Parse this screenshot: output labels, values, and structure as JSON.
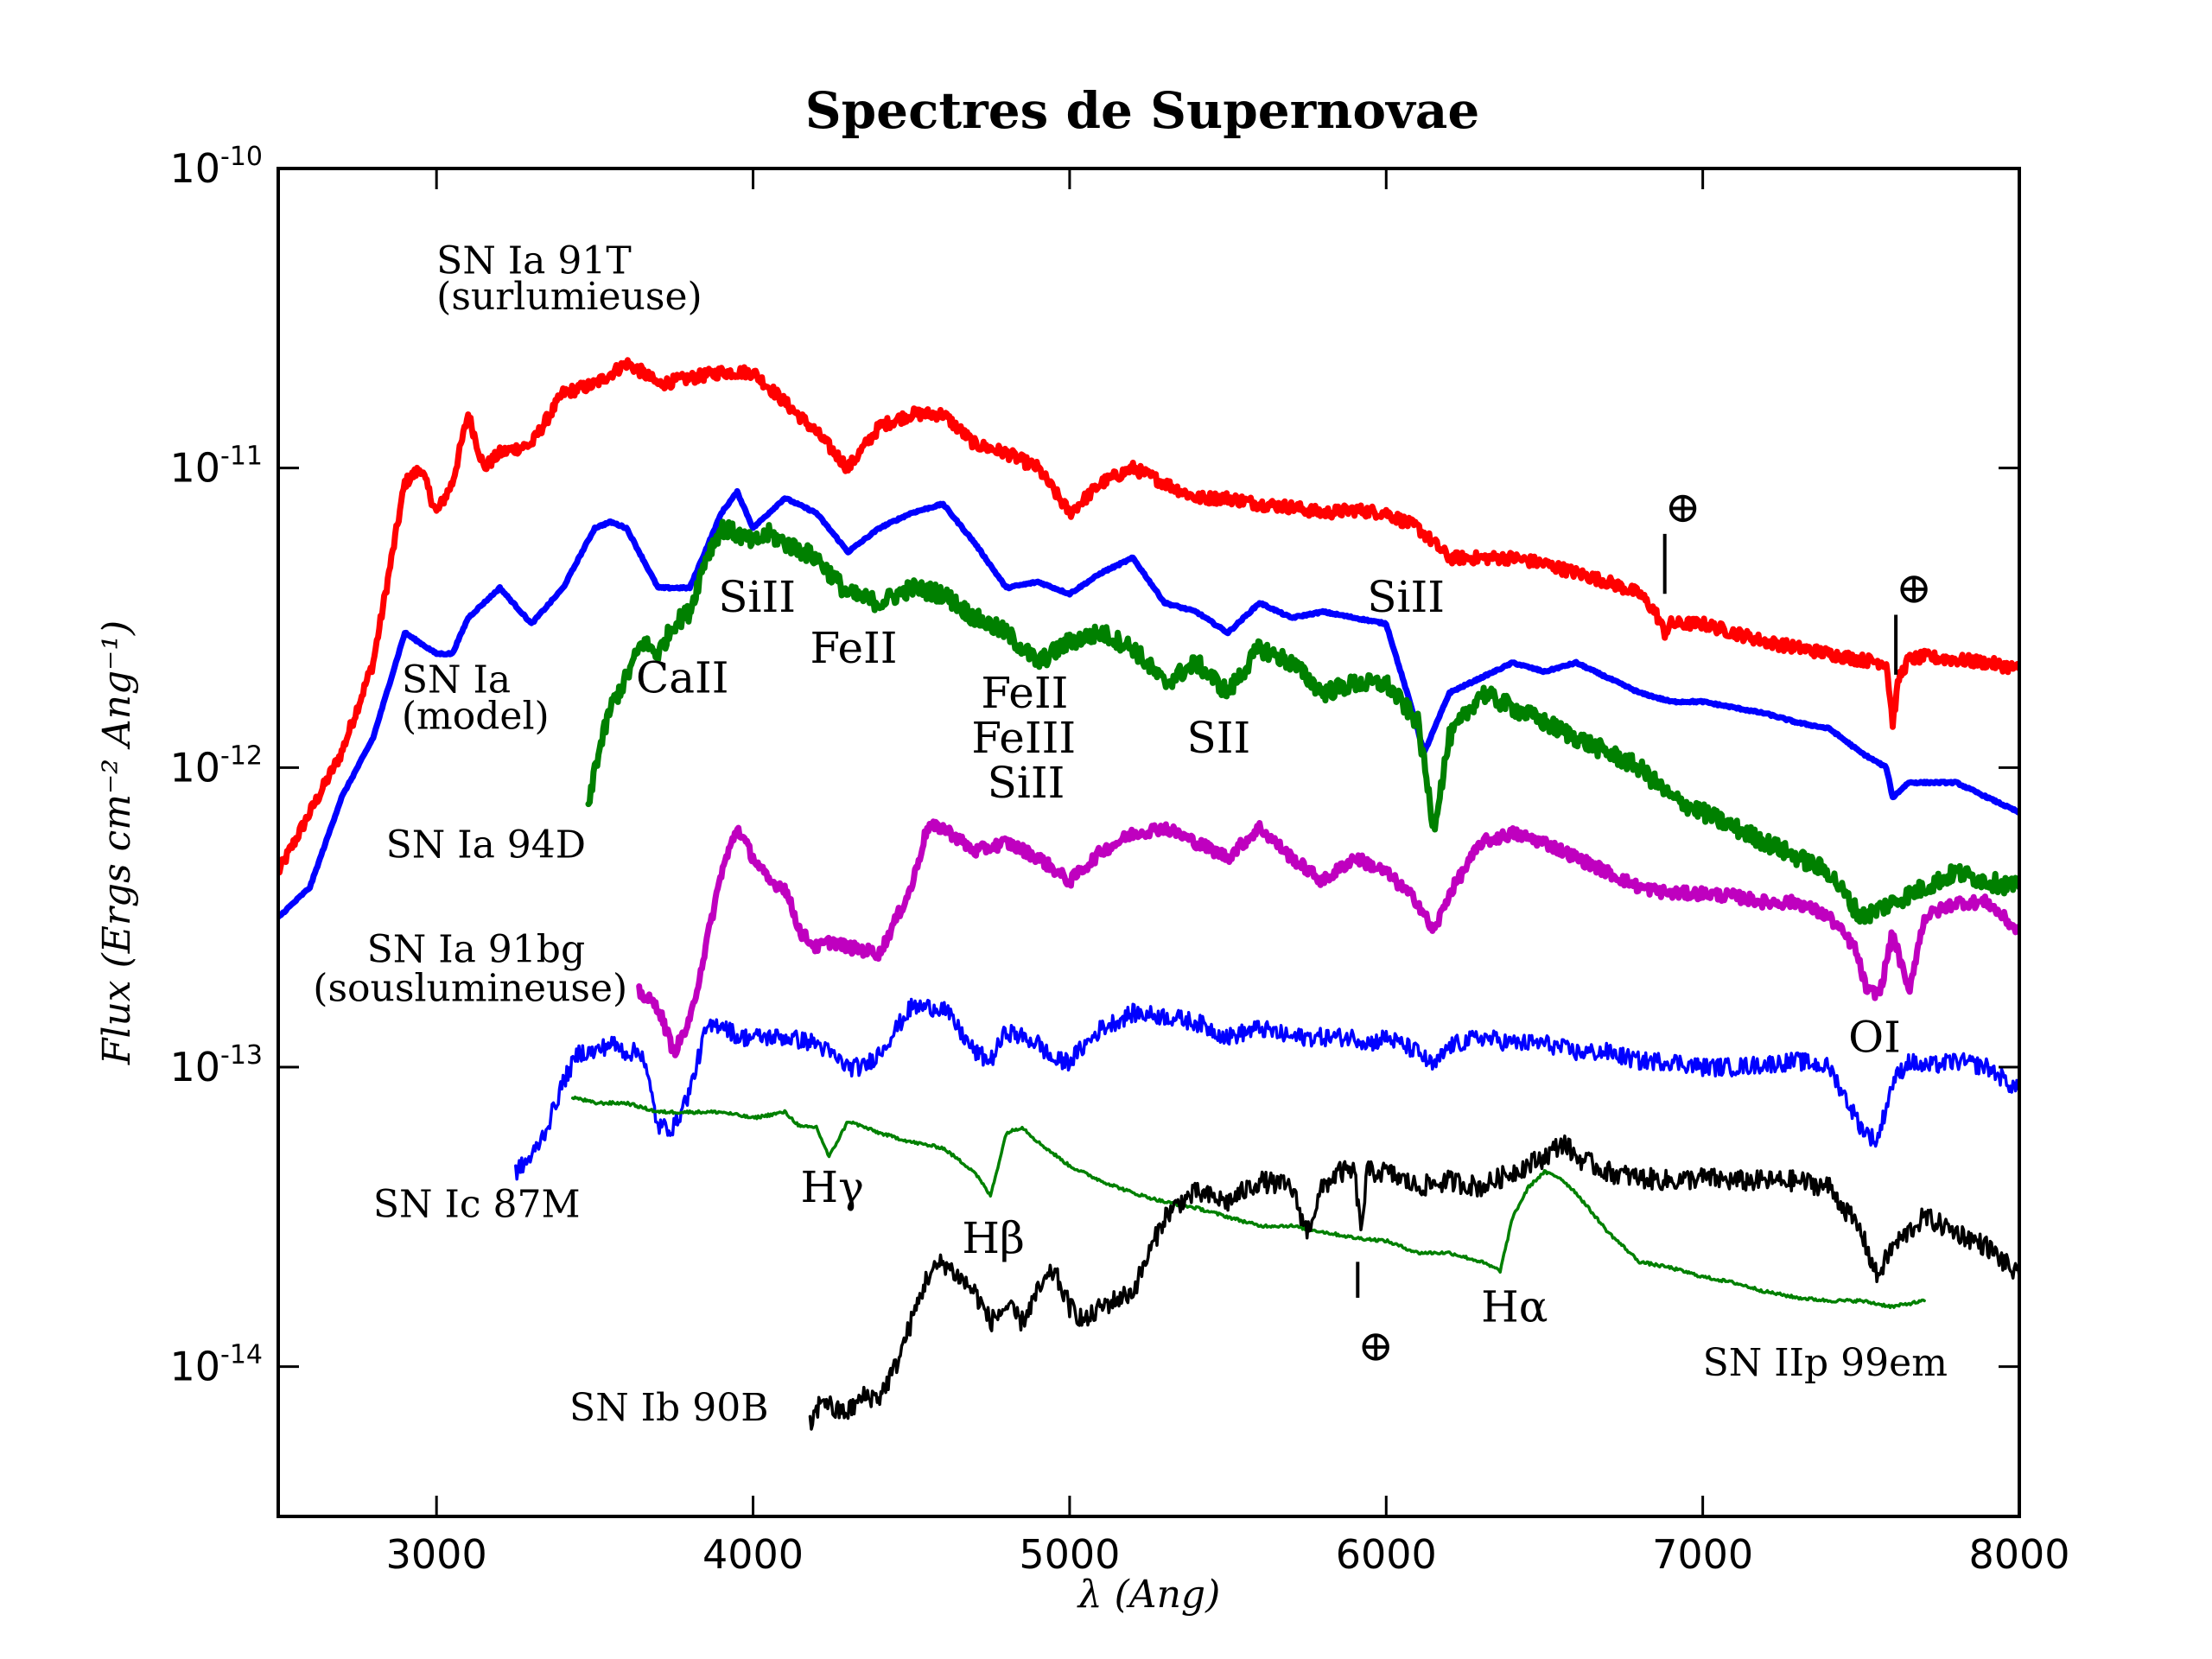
{
  "chart_data": {
    "type": "line",
    "title": "Spectres de Supernovae",
    "xlabel": "λ (Ang)",
    "ylabel": "Flux (Ergs cm⁻² Ang⁻¹)",
    "xlim": [
      2500,
      8000
    ],
    "ylim_log10": [
      -14.5,
      -10
    ],
    "yscale": "log",
    "x_ticks": [
      "3000",
      "4000",
      "5000",
      "6000",
      "7000",
      "8000"
    ],
    "y_ticks": [
      {
        "base": "10",
        "exp": "-10"
      },
      {
        "base": "10",
        "exp": "-11"
      },
      {
        "base": "10",
        "exp": "-12"
      },
      {
        "base": "10",
        "exp": "-13"
      },
      {
        "base": "10",
        "exp": "-14"
      }
    ],
    "series": [
      {
        "name": "SN Ia 91T (surlumieuse)",
        "color": "#ff0000",
        "width": "thick",
        "noise": 0.02,
        "x": [
          2500,
          2600,
          2700,
          2800,
          2850,
          2900,
          2950,
          3000,
          3050,
          3100,
          3150,
          3200,
          3300,
          3400,
          3500,
          3600,
          3650,
          3700,
          3800,
          3900,
          4000,
          4100,
          4200,
          4300,
          4400,
          4500,
          4600,
          4700,
          4800,
          4900,
          5000,
          5100,
          5200,
          5300,
          5400,
          5500,
          5600,
          5700,
          5800,
          5900,
          6000,
          6100,
          6200,
          6300,
          6400,
          6500,
          6600,
          6700,
          6800,
          6850,
          6880,
          6900,
          7000,
          7100,
          7200,
          7300,
          7400,
          7500,
          7580,
          7600,
          7620,
          7650,
          7700,
          7800,
          7900,
          8000
        ],
        "y": [
          -12.35,
          -12.15,
          -11.95,
          -11.65,
          -11.35,
          -11.05,
          -11.0,
          -11.15,
          -11.05,
          -10.82,
          -11.0,
          -10.95,
          -10.92,
          -10.75,
          -10.72,
          -10.65,
          -10.68,
          -10.72,
          -10.7,
          -10.68,
          -10.68,
          -10.78,
          -10.88,
          -11.0,
          -10.86,
          -10.82,
          -10.82,
          -10.92,
          -10.95,
          -11.0,
          -11.15,
          -11.05,
          -11.0,
          -11.05,
          -11.1,
          -11.1,
          -11.12,
          -11.13,
          -11.15,
          -11.14,
          -11.15,
          -11.2,
          -11.3,
          -11.3,
          -11.3,
          -11.32,
          -11.35,
          -11.38,
          -11.42,
          -11.48,
          -11.55,
          -11.52,
          -11.52,
          -11.55,
          -11.58,
          -11.6,
          -11.62,
          -11.64,
          -11.65,
          -11.85,
          -11.7,
          -11.64,
          -11.63,
          -11.64,
          -11.65,
          -11.67
        ]
      },
      {
        "name": "SN Ia (model)",
        "color": "#0000ff",
        "width": "thick",
        "noise": 0.003,
        "x": [
          2500,
          2600,
          2700,
          2800,
          2900,
          3000,
          3050,
          3100,
          3200,
          3300,
          3400,
          3500,
          3550,
          3600,
          3700,
          3800,
          3900,
          3950,
          4000,
          4100,
          4200,
          4300,
          4400,
          4500,
          4600,
          4700,
          4800,
          4900,
          5000,
          5100,
          5200,
          5300,
          5400,
          5500,
          5600,
          5700,
          5800,
          5900,
          6000,
          6080,
          6120,
          6200,
          6300,
          6400,
          6500,
          6600,
          6700,
          6800,
          6900,
          7000,
          7100,
          7200,
          7300,
          7400,
          7500,
          7580,
          7600,
          7650,
          7700,
          7800,
          7900,
          8000
        ],
        "y": [
          -12.5,
          -12.4,
          -12.1,
          -11.9,
          -11.55,
          -11.62,
          -11.62,
          -11.5,
          -11.4,
          -11.52,
          -11.4,
          -11.2,
          -11.18,
          -11.2,
          -11.4,
          -11.4,
          -11.15,
          -11.08,
          -11.2,
          -11.1,
          -11.15,
          -11.28,
          -11.2,
          -11.15,
          -11.12,
          -11.25,
          -11.4,
          -11.38,
          -11.42,
          -11.35,
          -11.3,
          -11.45,
          -11.48,
          -11.55,
          -11.45,
          -11.5,
          -11.48,
          -11.5,
          -11.52,
          -11.8,
          -11.95,
          -11.75,
          -11.7,
          -11.65,
          -11.68,
          -11.65,
          -11.7,
          -11.75,
          -11.78,
          -11.78,
          -11.8,
          -11.82,
          -11.85,
          -11.87,
          -11.95,
          -12.0,
          -12.1,
          -12.05,
          -12.05,
          -12.05,
          -12.1,
          -12.15
        ]
      },
      {
        "name": "SN Ia 94D",
        "color": "#008000",
        "width": "thick",
        "noise": 0.03,
        "x": [
          3480,
          3500,
          3550,
          3600,
          3650,
          3700,
          3750,
          3800,
          3850,
          3900,
          3950,
          4000,
          4050,
          4100,
          4200,
          4300,
          4400,
          4500,
          4600,
          4700,
          4800,
          4900,
          5000,
          5100,
          5200,
          5300,
          5400,
          5500,
          5600,
          5700,
          5800,
          5900,
          6000,
          6100,
          6150,
          6200,
          6300,
          6400,
          6500,
          6600,
          6700,
          6800,
          6900,
          7000,
          7100,
          7200,
          7300,
          7400,
          7500,
          7600,
          7700,
          7800,
          7900,
          8000
        ],
        "y": [
          -12.15,
          -12.0,
          -11.8,
          -11.7,
          -11.58,
          -11.62,
          -11.52,
          -11.48,
          -11.3,
          -11.2,
          -11.22,
          -11.25,
          -11.22,
          -11.25,
          -11.3,
          -11.42,
          -11.45,
          -11.4,
          -11.42,
          -11.5,
          -11.55,
          -11.65,
          -11.58,
          -11.55,
          -11.6,
          -11.72,
          -11.65,
          -11.75,
          -11.6,
          -11.65,
          -11.75,
          -11.72,
          -11.72,
          -11.85,
          -12.2,
          -11.9,
          -11.75,
          -11.8,
          -11.85,
          -11.9,
          -11.95,
          -12.0,
          -12.1,
          -12.15,
          -12.2,
          -12.25,
          -12.3,
          -12.35,
          -12.5,
          -12.45,
          -12.4,
          -12.35,
          -12.38,
          -12.4
        ]
      },
      {
        "name": "SN Ia 91bg (souslumineuse)",
        "color": "#bf00bf",
        "width": "thick",
        "noise": 0.02,
        "x": [
          3640,
          3700,
          3750,
          3800,
          3850,
          3900,
          3950,
          4000,
          4050,
          4100,
          4150,
          4200,
          4250,
          4300,
          4400,
          4500,
          4550,
          4600,
          4700,
          4800,
          4900,
          5000,
          5100,
          5200,
          5300,
          5400,
          5500,
          5600,
          5700,
          5800,
          5900,
          6000,
          6100,
          6150,
          6200,
          6300,
          6400,
          6500,
          6600,
          6700,
          6800,
          6900,
          7000,
          7100,
          7200,
          7300,
          7400,
          7480,
          7520,
          7560,
          7600,
          7650,
          7700,
          7800,
          7900,
          8000
        ],
        "y": [
          -12.75,
          -12.8,
          -12.95,
          -12.85,
          -12.6,
          -12.35,
          -12.2,
          -12.3,
          -12.38,
          -12.4,
          -12.55,
          -12.6,
          -12.58,
          -12.6,
          -12.62,
          -12.4,
          -12.2,
          -12.2,
          -12.28,
          -12.25,
          -12.3,
          -12.38,
          -12.28,
          -12.22,
          -12.2,
          -12.25,
          -12.3,
          -12.2,
          -12.3,
          -12.38,
          -12.3,
          -12.35,
          -12.45,
          -12.55,
          -12.42,
          -12.25,
          -12.22,
          -12.25,
          -12.3,
          -12.35,
          -12.4,
          -12.42,
          -12.42,
          -12.43,
          -12.45,
          -12.45,
          -12.5,
          -12.6,
          -12.75,
          -12.75,
          -12.55,
          -12.75,
          -12.5,
          -12.45,
          -12.45,
          -12.55
        ]
      },
      {
        "name": "SN Ic 87M",
        "color": "#0000ff",
        "width": "thin",
        "noise": 0.03,
        "x": [
          3250,
          3300,
          3350,
          3400,
          3450,
          3500,
          3550,
          3600,
          3650,
          3700,
          3750,
          3800,
          3850,
          3900,
          3950,
          4000,
          4100,
          4200,
          4300,
          4350,
          4400,
          4500,
          4600,
          4700,
          4750,
          4800,
          4900,
          4950,
          5000,
          5100,
          5200,
          5300,
          5400,
          5500,
          5600,
          5700,
          5800,
          5900,
          5950,
          6000,
          6100,
          6150,
          6200,
          6300,
          6400,
          6500,
          6600,
          6700,
          6800,
          6900,
          7000,
          7100,
          7200,
          7300,
          7400,
          7500,
          7550,
          7600,
          7650,
          7700,
          7800,
          7900,
          8000
        ],
        "y": [
          -13.35,
          -13.3,
          -13.2,
          -13.05,
          -12.95,
          -12.95,
          -12.92,
          -12.95,
          -12.95,
          -13.2,
          -13.2,
          -13.08,
          -12.88,
          -12.85,
          -12.9,
          -12.9,
          -12.9,
          -12.92,
          -13.0,
          -13.0,
          -12.95,
          -12.8,
          -12.8,
          -12.95,
          -12.98,
          -12.88,
          -12.92,
          -12.98,
          -12.98,
          -12.87,
          -12.82,
          -12.83,
          -12.85,
          -12.9,
          -12.87,
          -12.9,
          -12.9,
          -12.9,
          -12.92,
          -12.9,
          -12.95,
          -13.0,
          -12.93,
          -12.9,
          -12.92,
          -12.92,
          -12.95,
          -12.95,
          -12.98,
          -12.98,
          -13.0,
          -13.0,
          -12.99,
          -12.98,
          -13.0,
          -13.2,
          -13.25,
          -13.05,
          -12.98,
          -13.0,
          -12.98,
          -13.0,
          -13.08
        ]
      },
      {
        "name": "SN IIp 99em",
        "color": "#008000",
        "width": "thin",
        "noise": 0.005,
        "x": [
          3430,
          3500,
          3600,
          3700,
          3800,
          3900,
          4000,
          4100,
          4150,
          4200,
          4240,
          4300,
          4400,
          4500,
          4600,
          4700,
          4750,
          4800,
          4850,
          4900,
          5000,
          5100,
          5200,
          5300,
          5400,
          5500,
          5600,
          5700,
          5800,
          5900,
          6000,
          6100,
          6200,
          6300,
          6360,
          6400,
          6450,
          6500,
          6550,
          6600,
          6700,
          6800,
          6900,
          7000,
          7100,
          7200,
          7300,
          7400,
          7500,
          7600,
          7700
        ],
        "y": [
          -13.1,
          -13.12,
          -13.12,
          -13.15,
          -13.15,
          -13.15,
          -13.17,
          -13.15,
          -13.2,
          -13.2,
          -13.3,
          -13.18,
          -13.22,
          -13.25,
          -13.27,
          -13.35,
          -13.43,
          -13.22,
          -13.2,
          -13.25,
          -13.33,
          -13.38,
          -13.42,
          -13.45,
          -13.47,
          -13.5,
          -13.53,
          -13.53,
          -13.55,
          -13.57,
          -13.58,
          -13.62,
          -13.62,
          -13.65,
          -13.68,
          -13.5,
          -13.4,
          -13.35,
          -13.37,
          -13.42,
          -13.55,
          -13.65,
          -13.67,
          -13.7,
          -13.72,
          -13.75,
          -13.77,
          -13.78,
          -13.78,
          -13.8,
          -13.78
        ]
      },
      {
        "name": "SN Ib 90B",
        "color": "#000000",
        "width": "thin",
        "noise": 0.035,
        "x": [
          4180,
          4220,
          4260,
          4300,
          4350,
          4400,
          4450,
          4500,
          4550,
          4600,
          4650,
          4700,
          4750,
          4800,
          4850,
          4900,
          4950,
          5000,
          5050,
          5100,
          5200,
          5300,
          5350,
          5400,
          5500,
          5600,
          5700,
          5750,
          5800,
          5850,
          5900,
          5920,
          5940,
          6000,
          6100,
          6200,
          6300,
          6400,
          6500,
          6560,
          6600,
          6700,
          6800,
          6900,
          7000,
          7100,
          7200,
          7300,
          7400,
          7500,
          7550,
          7600,
          7700,
          7800,
          7900,
          8000
        ],
        "y": [
          -14.2,
          -14.1,
          -14.15,
          -14.15,
          -14.1,
          -14.1,
          -14.0,
          -13.85,
          -13.7,
          -13.65,
          -13.7,
          -13.75,
          -13.85,
          -13.8,
          -13.85,
          -13.75,
          -13.68,
          -13.8,
          -13.85,
          -13.8,
          -13.75,
          -13.5,
          -13.45,
          -13.42,
          -13.45,
          -13.38,
          -13.4,
          -13.55,
          -13.4,
          -13.35,
          -13.35,
          -13.55,
          -13.35,
          -13.35,
          -13.4,
          -13.38,
          -13.4,
          -13.35,
          -13.3,
          -13.25,
          -13.3,
          -13.35,
          -13.37,
          -13.38,
          -13.37,
          -13.38,
          -13.38,
          -13.38,
          -13.4,
          -13.55,
          -13.7,
          -13.6,
          -13.5,
          -13.55,
          -13.6,
          -13.7
        ]
      }
    ],
    "annotations": [
      {
        "text": "SN Ia 91T",
        "x": 3000,
        "y": -10.35,
        "size": "small"
      },
      {
        "text": "(surlumieuse)",
        "x": 3000,
        "y": -10.47,
        "size": "small"
      },
      {
        "text": "SN Ia",
        "x": 2890,
        "y": -11.75,
        "size": "small"
      },
      {
        "text": "(model)",
        "x": 2890,
        "y": -11.87,
        "size": "small"
      },
      {
        "text": "SN Ia 94D",
        "x": 2840,
        "y": -12.3,
        "size": "small"
      },
      {
        "text": "SN Ia 91bg",
        "x": 2780,
        "y": -12.65,
        "size": "small"
      },
      {
        "text": "(souslumineuse)",
        "x": 2610,
        "y": -12.78,
        "size": "small"
      },
      {
        "text": "SN Ic 87M",
        "x": 2800,
        "y": -13.5,
        "size": "small"
      },
      {
        "text": "SN Ib 90B",
        "x": 3420,
        "y": -14.18,
        "size": "small"
      },
      {
        "text": "SN IIp 99em",
        "x": 7000,
        "y": -14.03,
        "size": "small"
      },
      {
        "text": "CaII",
        "x": 3630,
        "y": -11.75,
        "size": "large"
      },
      {
        "text": "SiII",
        "x": 3890,
        "y": -11.48,
        "size": "large"
      },
      {
        "text": "FeII",
        "x": 4180,
        "y": -11.65,
        "size": "large"
      },
      {
        "text": "FeII",
        "x": 4720,
        "y": -11.8,
        "size": "large"
      },
      {
        "text": "FeIII",
        "x": 4690,
        "y": -11.95,
        "size": "large"
      },
      {
        "text": "SiII",
        "x": 4740,
        "y": -12.1,
        "size": "large"
      },
      {
        "text": "SII",
        "x": 5370,
        "y": -11.95,
        "size": "large"
      },
      {
        "text": "SiII",
        "x": 5940,
        "y": -11.48,
        "size": "large"
      },
      {
        "text": "OI",
        "x": 7460,
        "y": -12.95,
        "size": "large"
      },
      {
        "text": "Hγ",
        "x": 4150,
        "y": -13.45,
        "size": "large"
      },
      {
        "text": "Hβ",
        "x": 4660,
        "y": -13.62,
        "size": "large"
      },
      {
        "text": "Hα",
        "x": 6300,
        "y": -13.85,
        "size": "large"
      },
      {
        "text": "⊕",
        "x": 6880,
        "y": -11.18,
        "size": "large"
      },
      {
        "text": "⊕",
        "x": 7610,
        "y": -11.45,
        "size": "large"
      },
      {
        "text": "⊕",
        "x": 5910,
        "y": -13.98,
        "size": "large"
      }
    ],
    "telluric_markers": [
      {
        "x": 6880,
        "y_top": -11.22,
        "y_bottom": -11.42
      },
      {
        "x": 7610,
        "y_top": -11.49,
        "y_bottom": -11.69
      },
      {
        "x": 5910,
        "y_top": -13.65,
        "y_bottom": -13.77
      }
    ]
  }
}
